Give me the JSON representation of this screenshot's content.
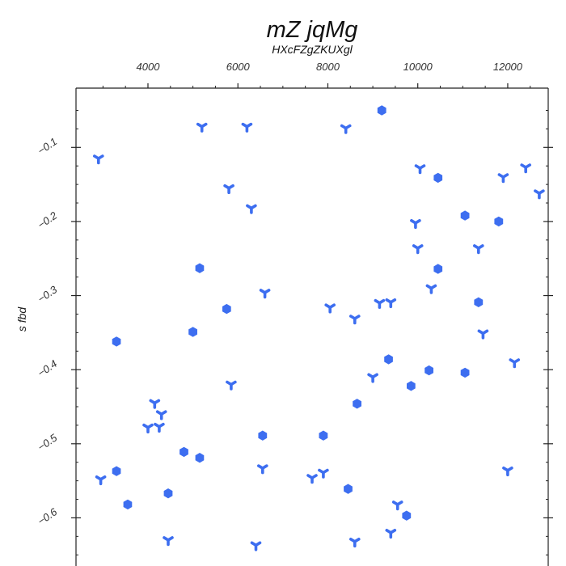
{
  "chart_data": {
    "type": "scatter",
    "title": "mZ jqMg",
    "subtitle": "HXcFZgZKUXgl",
    "xlabel": "",
    "ylabel": "s fbd",
    "x_axis_position": "top",
    "xlim": [
      2400,
      12900
    ],
    "ylim": [
      -0.665,
      -0.02
    ],
    "x_ticks": [
      4000,
      6000,
      8000,
      10000,
      12000
    ],
    "y_ticks": [
      -0.1,
      -0.2,
      -0.3,
      -0.4,
      -0.5,
      -0.6
    ],
    "y_tick_labels": [
      "−0.1",
      "−0.2",
      "−0.3",
      "−0.4",
      "−0.5",
      "−0.6"
    ],
    "grid": false,
    "marker_color": "#3d6ef0",
    "series": [
      {
        "marker": "tri",
        "points": [
          [
            2900,
            -0.115
          ],
          [
            5200,
            -0.072
          ],
          [
            6200,
            -0.072
          ],
          [
            8400,
            -0.074
          ],
          [
            5800,
            -0.155
          ],
          [
            6300,
            -0.182
          ],
          [
            6600,
            -0.296
          ],
          [
            5850,
            -0.42
          ],
          [
            8050,
            -0.316
          ],
          [
            8600,
            -0.331
          ],
          [
            9150,
            -0.31
          ],
          [
            9400,
            -0.309
          ],
          [
            10050,
            -0.128
          ],
          [
            9950,
            -0.202
          ],
          [
            10000,
            -0.236
          ],
          [
            10300,
            -0.29
          ],
          [
            11900,
            -0.14
          ],
          [
            12400,
            -0.127
          ],
          [
            12700,
            -0.162
          ],
          [
            11350,
            -0.236
          ],
          [
            11450,
            -0.351
          ],
          [
            12150,
            -0.39
          ],
          [
            9000,
            -0.41
          ],
          [
            4150,
            -0.445
          ],
          [
            4300,
            -0.46
          ],
          [
            4000,
            -0.478
          ],
          [
            4250,
            -0.477
          ],
          [
            2950,
            -0.548
          ],
          [
            4450,
            -0.63
          ],
          [
            6550,
            -0.533
          ],
          [
            7650,
            -0.546
          ],
          [
            7900,
            -0.539
          ],
          [
            6400,
            -0.637
          ],
          [
            8600,
            -0.632
          ],
          [
            9550,
            -0.582
          ],
          [
            9400,
            -0.62
          ],
          [
            12000,
            -0.536
          ]
        ]
      },
      {
        "marker": "hex",
        "points": [
          [
            9200,
            -0.05
          ],
          [
            10450,
            -0.141
          ],
          [
            11050,
            -0.192
          ],
          [
            11800,
            -0.2
          ],
          [
            10450,
            -0.264
          ],
          [
            5150,
            -0.263
          ],
          [
            5750,
            -0.318
          ],
          [
            5000,
            -0.349
          ],
          [
            3300,
            -0.362
          ],
          [
            11350,
            -0.309
          ],
          [
            9350,
            -0.386
          ],
          [
            10250,
            -0.401
          ],
          [
            11050,
            -0.404
          ],
          [
            9850,
            -0.422
          ],
          [
            8650,
            -0.446
          ],
          [
            6550,
            -0.489
          ],
          [
            7900,
            -0.489
          ],
          [
            4800,
            -0.511
          ],
          [
            5150,
            -0.519
          ],
          [
            3300,
            -0.537
          ],
          [
            3550,
            -0.582
          ],
          [
            4450,
            -0.567
          ],
          [
            8450,
            -0.561
          ],
          [
            9750,
            -0.597
          ]
        ]
      }
    ]
  }
}
